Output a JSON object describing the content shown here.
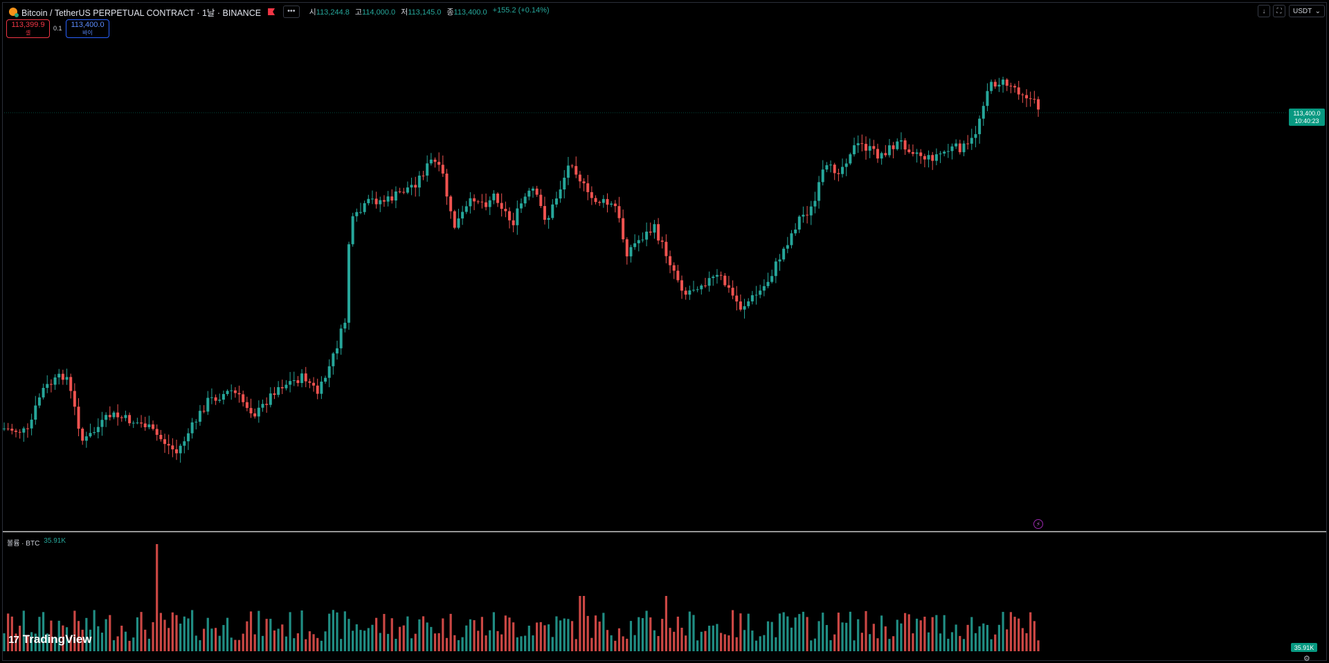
{
  "legend": {
    "symbol": "Bitcoin / TetherUS PERPETUAL CONTRACT · 1날 · BINANCE",
    "more": "•••",
    "ohlc": [
      {
        "k": "시",
        "v": "113,244.8"
      },
      {
        "k": "고",
        "v": "114,000.0"
      },
      {
        "k": "저",
        "v": "113,145.0"
      },
      {
        "k": "종",
        "v": "113,400.0"
      }
    ],
    "change": "+155.2 (+0.14%)"
  },
  "trade": {
    "sell_price": "113,399.9",
    "sell_label": "셀",
    "spread": "0.1",
    "buy_price": "113,400.0",
    "buy_label": "바이"
  },
  "toolbar": {
    "currency": "USDT"
  },
  "last_price": {
    "price": "113,400.0",
    "countdown": "10:40:23"
  },
  "volume": {
    "label": "볼륨 · BTC",
    "value": "35.91K",
    "tag": "35.91K"
  },
  "brand": {
    "name": "TradingView",
    "mark": "17"
  },
  "colors": {
    "up": "#26a69a",
    "down": "#ef5350",
    "background": "#000000"
  },
  "chart_data": {
    "type": "candlestick",
    "bars": 265,
    "interval": "1D",
    "last_close": 113400.0,
    "last_open": 113244.8,
    "last_high": 114000.0,
    "last_low": 113145.0,
    "volume_unit": "BTC",
    "last_volume": "35.91K"
  }
}
